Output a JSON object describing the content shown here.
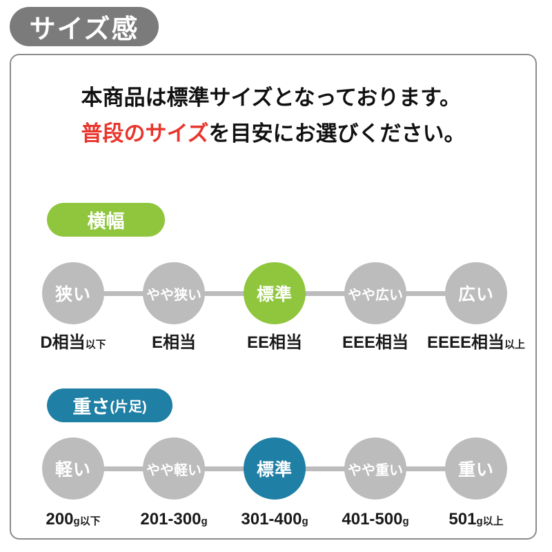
{
  "page_title": "サイズ感",
  "intro": {
    "line1": "本商品は標準サイズとなっております。",
    "line2_highlight": "普段のサイズ",
    "line2_rest": "を目安にお選びください。"
  },
  "colors": {
    "badge-gray": "#7b7b7b",
    "border-gray": "#8b8b8b",
    "circle-gray": "#bcbcbc",
    "green": "#8fc63d",
    "blue": "#1f7fa4",
    "red": "#e8362d"
  },
  "sections": [
    {
      "badge": "横幅",
      "badge_suffix": "",
      "accent": "#8fc63d",
      "steps": [
        {
          "label": "狭い",
          "active": false
        },
        {
          "label": "やや狭い",
          "active": false
        },
        {
          "label": "標準",
          "active": true
        },
        {
          "label": "やや広い",
          "active": false
        },
        {
          "label": "広い",
          "active": false
        }
      ],
      "scale": [
        {
          "main": "D相当",
          "suffix": "以下"
        },
        {
          "main": "E相当",
          "suffix": ""
        },
        {
          "main": "EE相当",
          "suffix": ""
        },
        {
          "main": "EEE相当",
          "suffix": ""
        },
        {
          "main": "EEEE相当",
          "suffix": "以上"
        }
      ]
    },
    {
      "badge": "重さ",
      "badge_suffix": "(片足)",
      "accent": "#1f7fa4",
      "steps": [
        {
          "label": "軽い",
          "active": false
        },
        {
          "label": "やや軽い",
          "active": false
        },
        {
          "label": "標準",
          "active": true
        },
        {
          "label": "やや重い",
          "active": false
        },
        {
          "label": "重い",
          "active": false
        }
      ],
      "scale": [
        {
          "main": "200",
          "suffix": "g以下"
        },
        {
          "main": "201-300",
          "suffix": "g"
        },
        {
          "main": "301-400",
          "suffix": "g"
        },
        {
          "main": "401-500",
          "susuffix_unused": "",
          "suffix": "g"
        },
        {
          "main": "501",
          "suffix": "g以上"
        }
      ]
    }
  ]
}
